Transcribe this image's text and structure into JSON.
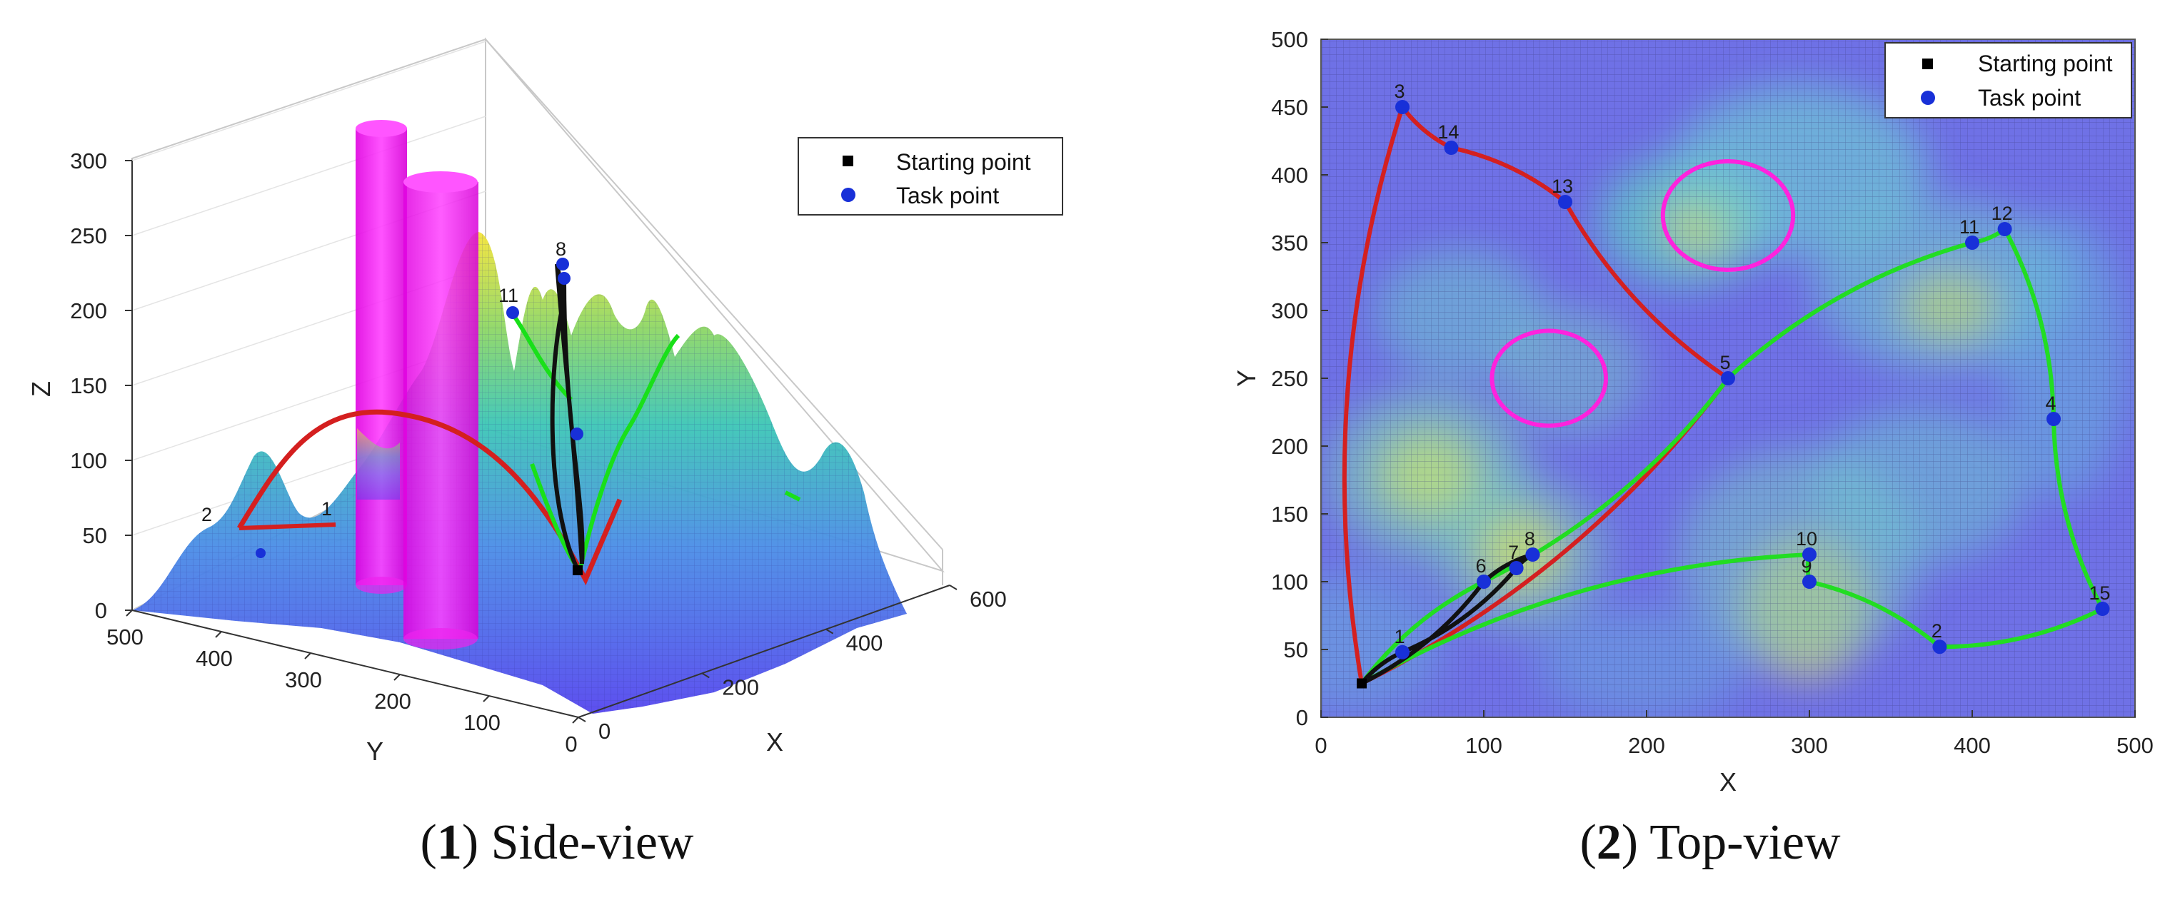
{
  "chart_data": [
    {
      "type": "scatter",
      "view": "3D surface",
      "caption_number": "1",
      "caption_text": "Side-view",
      "xlabel": "X",
      "ylabel": "Y",
      "zlabel": "Z",
      "x_ticks": [
        "0",
        "200",
        "400",
        "600"
      ],
      "y_ticks": [
        "500",
        "400",
        "300",
        "200",
        "100",
        "0"
      ],
      "z_ticks": [
        "300",
        "250",
        "200",
        "150",
        "100",
        "50",
        "0"
      ],
      "legend": {
        "position": "top-right",
        "entries": [
          "Starting point",
          "Task point"
        ]
      },
      "visible_point_labels": [
        "11",
        "8",
        "1",
        "2"
      ],
      "colors": {
        "obstacle": "#ff00ff",
        "surface_low": "#5a4cf0",
        "surface_mid": "#3cc1b8",
        "surface_high": "#f5e83a"
      }
    },
    {
      "type": "scatter",
      "view": "2D top",
      "caption_number": "2",
      "caption_text": "Top-view",
      "xlabel": "X",
      "ylabel": "Y",
      "xlim": [
        0,
        500
      ],
      "ylim": [
        0,
        500
      ],
      "x_ticks": [
        "0",
        "100",
        "200",
        "300",
        "400",
        "500"
      ],
      "y_ticks": [
        "500",
        "450",
        "400",
        "350",
        "300",
        "250",
        "200",
        "150",
        "100",
        "50",
        "0"
      ],
      "grid": true,
      "legend": {
        "position": "top-right",
        "entries": [
          "Starting point",
          "Task point"
        ]
      },
      "starting_point": {
        "x": 25,
        "y": 25
      },
      "task_points": [
        {
          "id": "1",
          "x": 50,
          "y": 48
        },
        {
          "id": "2",
          "x": 380,
          "y": 52
        },
        {
          "id": "3",
          "x": 50,
          "y": 450
        },
        {
          "id": "4",
          "x": 450,
          "y": 220
        },
        {
          "id": "5",
          "x": 250,
          "y": 250
        },
        {
          "id": "6",
          "x": 100,
          "y": 100
        },
        {
          "id": "7",
          "x": 120,
          "y": 110
        },
        {
          "id": "8",
          "x": 130,
          "y": 120
        },
        {
          "id": "9",
          "x": 300,
          "y": 100
        },
        {
          "id": "10",
          "x": 300,
          "y": 120
        },
        {
          "id": "11",
          "x": 400,
          "y": 350
        },
        {
          "id": "12",
          "x": 420,
          "y": 360
        },
        {
          "id": "13",
          "x": 150,
          "y": 380
        },
        {
          "id": "14",
          "x": 80,
          "y": 420
        },
        {
          "id": "15",
          "x": 480,
          "y": 80
        }
      ],
      "obstacles": [
        {
          "cx": 250,
          "cy": 370,
          "r": 40
        },
        {
          "cx": 140,
          "cy": 250,
          "r": 35
        }
      ],
      "routes": [
        {
          "color": "#d42020",
          "sequence": [
            "S",
            "3",
            "14",
            "13",
            "5",
            "S"
          ]
        },
        {
          "color": "#22dd22",
          "sequence": [
            "S",
            "6",
            "5",
            "11",
            "12",
            "4",
            "15",
            "2",
            "9",
            "10",
            "S"
          ]
        },
        {
          "color": "#111111",
          "sequence": [
            "S",
            "1",
            "7",
            "8",
            "6",
            "S"
          ]
        }
      ],
      "colors": {
        "obstacle": "#ff22dd",
        "task_point": "#1830d8",
        "start": "#000000"
      }
    }
  ]
}
